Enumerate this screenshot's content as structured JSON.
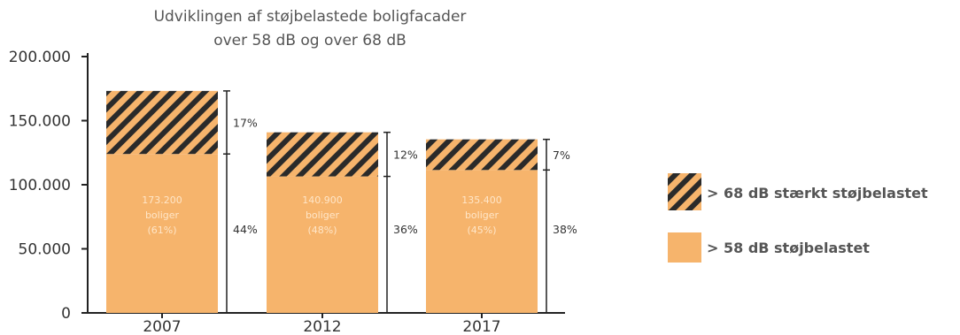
{
  "chart_data": {
    "type": "bar",
    "title": [
      "Udviklingen af støjbelastede boligfacader",
      "over 58 dB og over 68 dB"
    ],
    "categories": [
      "2007",
      "2012",
      "2017"
    ],
    "series": [
      {
        "name": "> 58 dB støjbelastet",
        "values": [
          124000,
          106500,
          111500
        ]
      },
      {
        "name": "> 68 dB stærkt støjbelastet",
        "values": [
          49200,
          34400,
          23900
        ]
      }
    ],
    "totals": [
      173200,
      140900,
      135400
    ],
    "bar_labels": [
      [
        "173.200",
        "boliger",
        "(61%)"
      ],
      [
        "140.900",
        "boliger",
        "(48%)"
      ],
      [
        "135.400",
        "boliger",
        "(45%)"
      ]
    ],
    "upper_pct": [
      "17%",
      "12%",
      "7%"
    ],
    "lower_pct": [
      "44%",
      "36%",
      "38%"
    ],
    "y_ticks": [
      "0",
      "50.000",
      "100.000",
      "150.000",
      "200.000"
    ],
    "y_tick_values": [
      0,
      50000,
      100000,
      150000,
      200000
    ],
    "ylim": [
      0,
      200000
    ],
    "legend_position": "right",
    "colors": {
      "base": "#f6b46c",
      "hatch_bg": "#f6b46c",
      "hatch_line": "#2a2a2a",
      "axis": "#222222"
    }
  }
}
